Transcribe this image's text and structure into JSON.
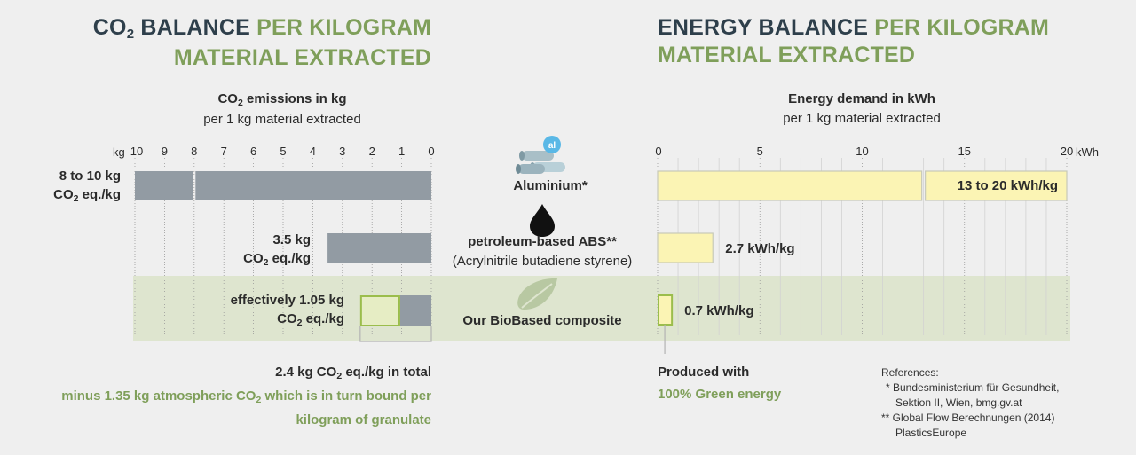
{
  "colors": {
    "co2_bar": "#929ba3",
    "energy_bar": "#fbf4b4",
    "energy_border": "#c7c9b8",
    "green": "#7f9f5a",
    "dark": "#2e3f4b",
    "band": "#dee5cf",
    "bio_fill": "#e6edc4",
    "bio_border": "#9bbd4c"
  },
  "left": {
    "title_a1": "CO",
    "title_a_sub": "2",
    "title_a2": " BALANCE",
    "title_b": " PER KILOGRAM",
    "title_c": "MATERIAL EXTRACTED",
    "axis_title_1": "CO",
    "axis_title_sub": "2",
    "axis_title_2": " emissions in kg",
    "axis_subtitle": "per 1 kg material extracted",
    "unit": "kg",
    "total_label_1": "2.4 kg CO",
    "total_label_sub": "2",
    "total_label_2": " eq./kg in total",
    "note_line1_a": "minus 1.35 kg atmospheric CO",
    "note_line1_sub": "2",
    "note_line1_b": " which is in turn bound per",
    "note_line2": "kilogram of granulate"
  },
  "right": {
    "title_a": "ENERGY BALANCE",
    "title_b": " PER KILOGRAM",
    "title_c": "MATERIAL EXTRACTED",
    "axis_title": "Energy demand in kWh",
    "axis_subtitle": "per 1 kg material extracted",
    "unit": "kWh",
    "produced_with": "Produced with",
    "green_energy": "100% Green energy"
  },
  "materials": {
    "aluminium": "Aluminium*",
    "aluminium_badge": "al",
    "abs_line1": "petroleum-based ABS**",
    "abs_line2": "(Acrylnitrile butadiene styrene)",
    "bio": "Our BioBased composite"
  },
  "references": {
    "title": "References:",
    "lines": [
      "* Bundesministerium für Gesundheit,",
      "Sektion II, Wien, bmg.gv.at",
      "** Global Flow Berechnungen (2014)",
      "PlasticsEurope"
    ]
  },
  "chart_data": [
    {
      "type": "bar",
      "orientation": "horizontal",
      "title": "CO2 BALANCE PER KILOGRAM MATERIAL EXTRACTED",
      "xlabel": "CO2 emissions in kg per 1 kg material extracted",
      "xlim": [
        10,
        0
      ],
      "xticks": [
        10,
        9,
        8,
        7,
        6,
        5,
        4,
        3,
        2,
        1,
        0
      ],
      "categories": [
        "Aluminium*",
        "petroleum-based ABS**",
        "Our BioBased composite"
      ],
      "series": [
        {
          "values": [
            [
              8,
              10
            ],
            3.5,
            1.05
          ]
        }
      ],
      "bio_total": 2.4,
      "bio_bound": 1.35,
      "labels": [
        {
          "line1": "8 to 10 kg",
          "line2_a": "CO",
          "line2_sub": "2",
          "line2_b": " eq./kg"
        },
        {
          "line1": "3.5 kg",
          "line2_a": "CO",
          "line2_sub": "2",
          "line2_b": " eq./kg"
        },
        {
          "line1": "effectively 1.05 kg",
          "line2_a": "CO",
          "line2_sub": "2",
          "line2_b": " eq./kg"
        }
      ]
    },
    {
      "type": "bar",
      "orientation": "horizontal",
      "title": "ENERGY BALANCE PER KILOGRAM MATERIAL EXTRACTED",
      "xlabel": "Energy demand in kWh per 1 kg material extracted",
      "xlim": [
        0,
        20
      ],
      "xticks": [
        0,
        5,
        10,
        15,
        20
      ],
      "categories": [
        "Aluminium*",
        "petroleum-based ABS**",
        "Our BioBased composite"
      ],
      "series": [
        {
          "values": [
            [
              13,
              20
            ],
            2.7,
            0.7
          ]
        }
      ],
      "labels": [
        "13 to 20 kWh/kg",
        "2.7 kWh/kg",
        "0.7 kWh/kg"
      ]
    }
  ]
}
